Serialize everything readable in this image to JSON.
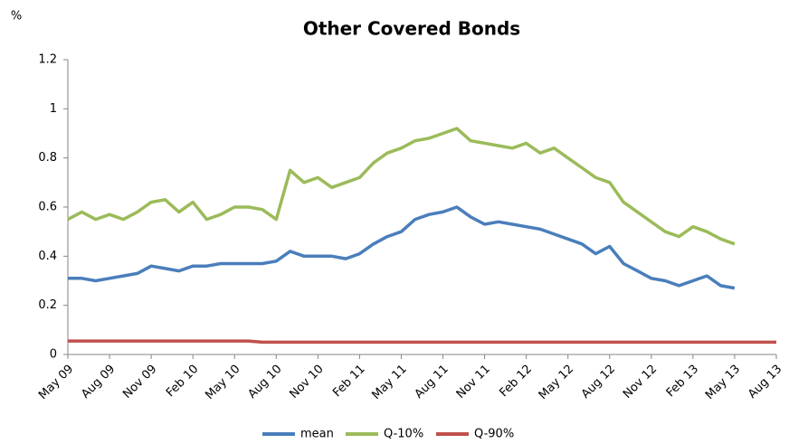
{
  "chart_data": {
    "type": "line",
    "title": "Other Covered Bonds",
    "y_label": "%",
    "categories": [
      "May 09",
      null,
      null,
      "Aug 09",
      null,
      null,
      "Nov 09",
      null,
      null,
      "Feb 10",
      null,
      null,
      "May 10",
      null,
      null,
      "Aug 10",
      null,
      null,
      "Nov 10",
      null,
      null,
      "Feb 11",
      null,
      null,
      "May 11",
      null,
      null,
      "Aug 11",
      null,
      null,
      "Nov 11",
      null,
      null,
      "Feb 12",
      null,
      null,
      "May 12",
      null,
      null,
      "Aug 12",
      null,
      null,
      "Nov 12",
      null,
      null,
      "Feb 13",
      null,
      null,
      "May 13",
      null,
      null,
      "Aug 13"
    ],
    "series": [
      {
        "name": "mean",
        "color": "#4a7ebb",
        "values": [
          0.31,
          0.31,
          0.3,
          0.31,
          0.32,
          0.33,
          0.36,
          0.35,
          0.34,
          0.36,
          0.36,
          0.37,
          0.37,
          0.37,
          0.37,
          0.38,
          0.42,
          0.4,
          0.4,
          0.4,
          0.39,
          0.41,
          0.45,
          0.48,
          0.5,
          0.55,
          0.57,
          0.58,
          0.6,
          0.56,
          0.53,
          0.54,
          0.53,
          0.52,
          0.51,
          0.49,
          0.47,
          0.45,
          0.41,
          0.44,
          0.37,
          0.34,
          0.31,
          0.3,
          0.28,
          0.3,
          0.32,
          0.28,
          0.27,
          null,
          null,
          null
        ]
      },
      {
        "name": "Q-10%",
        "color": "#9bbb59",
        "values": [
          0.55,
          0.58,
          0.55,
          0.57,
          0.55,
          0.58,
          0.62,
          0.63,
          0.58,
          0.62,
          0.55,
          0.57,
          0.6,
          0.6,
          0.59,
          0.55,
          0.75,
          0.7,
          0.72,
          0.68,
          0.7,
          0.72,
          0.78,
          0.82,
          0.84,
          0.87,
          0.88,
          0.9,
          0.92,
          0.87,
          0.86,
          0.85,
          0.84,
          0.86,
          0.82,
          0.84,
          0.8,
          0.76,
          0.72,
          0.7,
          0.62,
          0.58,
          0.54,
          0.5,
          0.48,
          0.52,
          0.5,
          0.47,
          0.45,
          null,
          null,
          null
        ]
      },
      {
        "name": "Q-90%",
        "color": "#c0504d",
        "values": [
          0.055,
          0.055,
          0.055,
          0.055,
          0.055,
          0.055,
          0.055,
          0.055,
          0.055,
          0.055,
          0.055,
          0.055,
          0.055,
          0.055,
          0.05,
          0.05,
          0.05,
          0.05,
          0.05,
          0.05,
          0.05,
          0.05,
          0.05,
          0.05,
          0.05,
          0.05,
          0.05,
          0.05,
          0.05,
          0.05,
          0.05,
          0.05,
          0.05,
          0.05,
          0.05,
          0.05,
          0.05,
          0.05,
          0.05,
          0.05,
          0.05,
          0.05,
          0.05,
          0.05,
          0.05,
          0.05,
          0.05,
          0.05,
          0.05,
          0.05,
          0.05,
          0.05
        ]
      }
    ],
    "ylim": [
      0,
      1.2
    ],
    "yticks": [
      0,
      0.2,
      0.4,
      0.6,
      0.8,
      1,
      1.2
    ],
    "grid": false,
    "legend": "bottom"
  }
}
